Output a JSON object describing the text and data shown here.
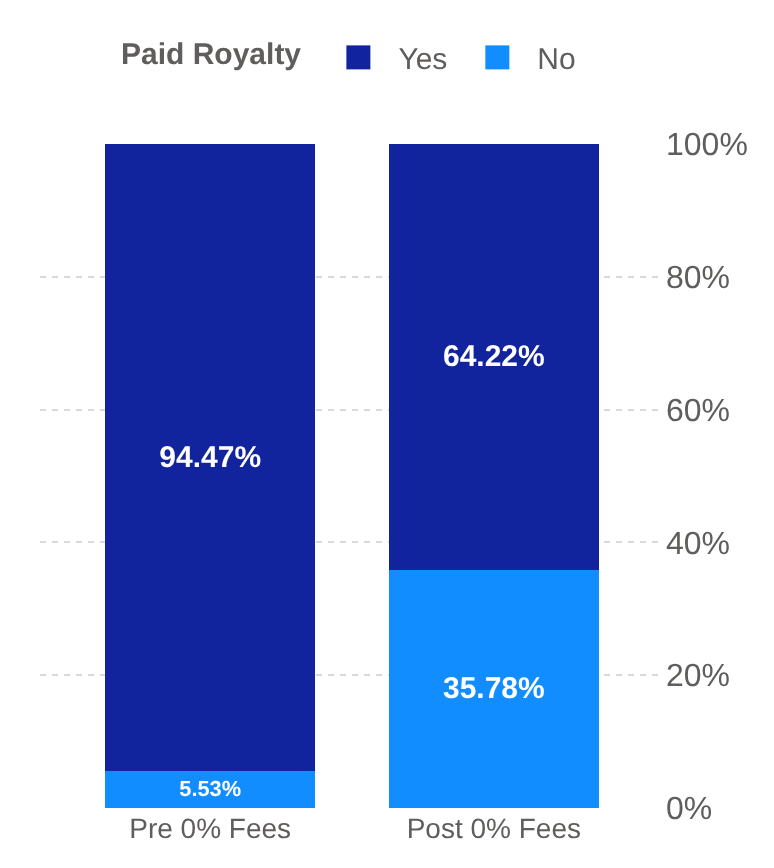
{
  "chart_data": {
    "type": "bar",
    "stacked": true,
    "legend_title": "Paid Royalty",
    "legend": "top",
    "grid": "y",
    "categories": [
      "Pre 0% Fees",
      "Post 0% Fees"
    ],
    "series": [
      {
        "name": "No",
        "color": "#118dff",
        "values": [
          5.53,
          35.78
        ],
        "value_labels": [
          "5.53%",
          "35.78%"
        ]
      },
      {
        "name": "Yes",
        "color": "#12239e",
        "values": [
          94.47,
          64.22
        ],
        "value_labels": [
          "94.47%",
          "64.22%"
        ]
      }
    ],
    "ylim": [
      0,
      100
    ],
    "yticks": [
      {
        "value": 0,
        "label": "0%"
      },
      {
        "value": 20,
        "label": "20%"
      },
      {
        "value": 40,
        "label": "40%"
      },
      {
        "value": 60,
        "label": "60%"
      },
      {
        "value": 80,
        "label": "80%"
      },
      {
        "value": 100,
        "label": "100%"
      }
    ]
  }
}
